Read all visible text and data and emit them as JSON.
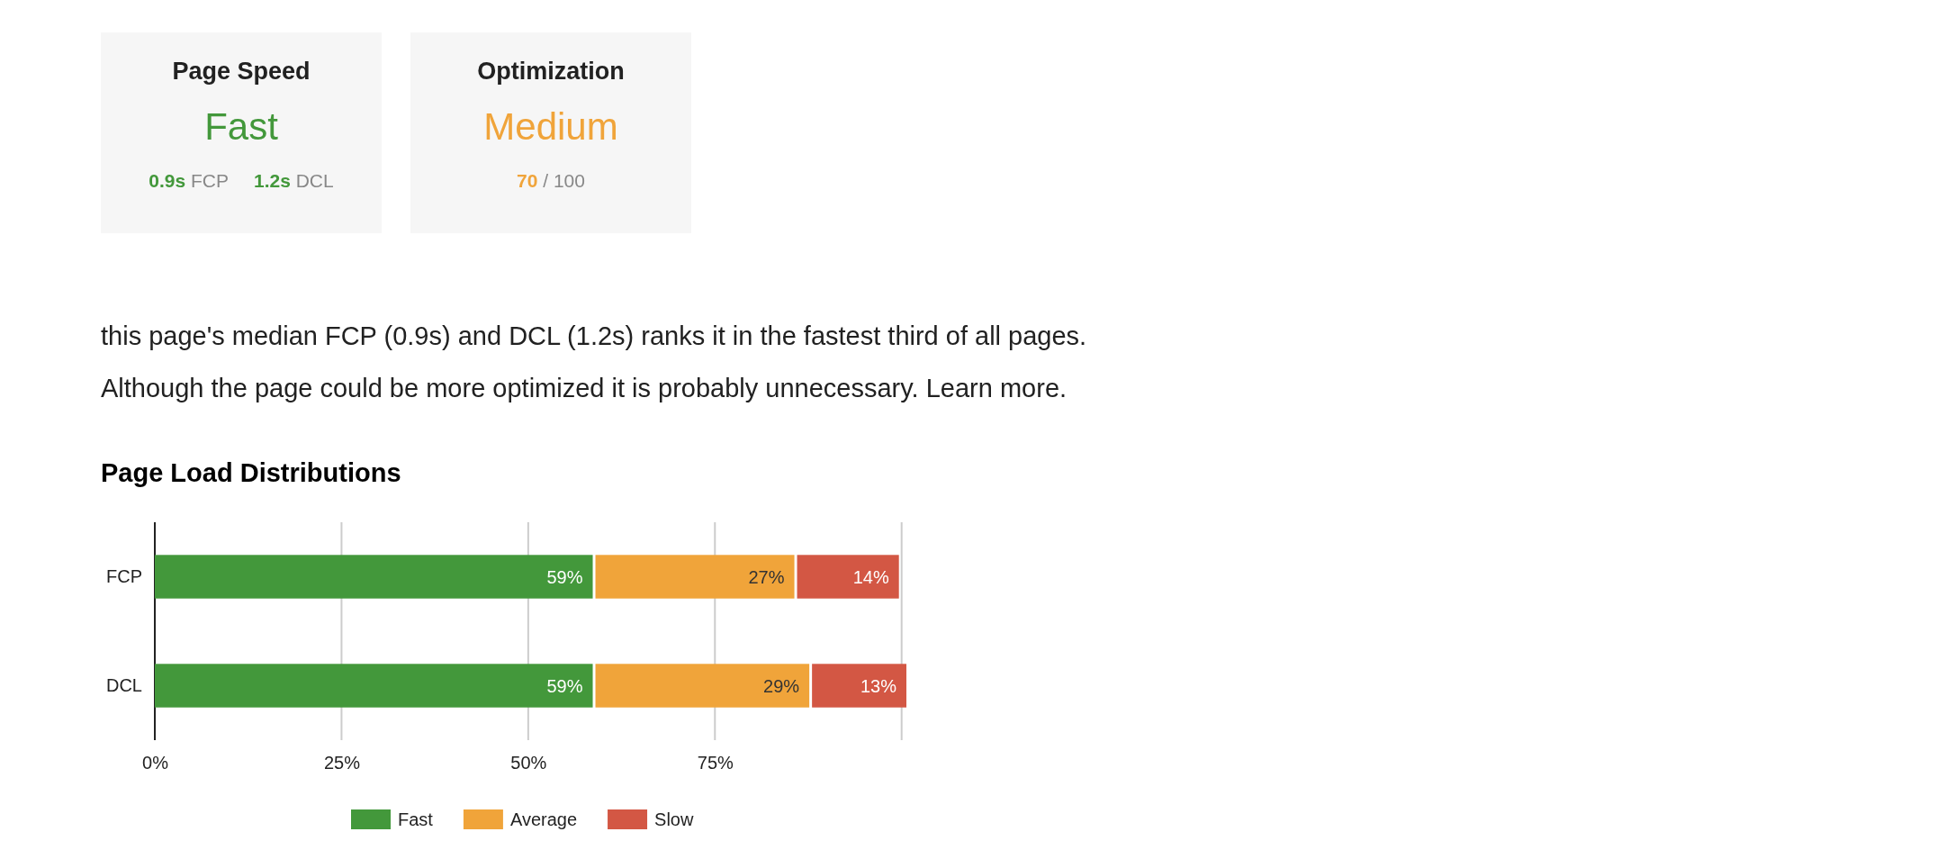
{
  "chart_data": [
    {
      "type": "other",
      "title": "Page Speed",
      "subtitle": "Fast",
      "color": "#43983b",
      "annotations": [
        "0.9s FCP",
        "1.2s DCL"
      ]
    },
    {
      "type": "other",
      "title": "Optimization",
      "subtitle": "Medium",
      "color": "#f0a43a",
      "annotations": [
        "70 / 100"
      ]
    },
    {
      "type": "bar",
      "orientation": "horizontal",
      "stacked": true,
      "title": "Page Load Distributions",
      "annotations": [
        "this page's median FCP (0.9s) and DCL (1.2s) ranks it in the fastest third of all pages.",
        "Although the page could be more optimized it is probably unnecessary. Learn more."
      ],
      "categories": [
        "FCP",
        "DCL"
      ],
      "series": [
        {
          "name": "Fast",
          "color": "#43983b",
          "values": [
            59,
            59
          ],
          "value_labels": [
            "59%",
            "59%"
          ]
        },
        {
          "name": "Average",
          "color": "#f0a43a",
          "values": [
            27,
            29
          ],
          "value_labels": [
            "27%",
            "29%"
          ]
        },
        {
          "name": "Slow",
          "color": "#d35744",
          "values": [
            14,
            13
          ],
          "value_labels": [
            "14%",
            "13%"
          ]
        }
      ],
      "xlim": [
        0,
        101
      ],
      "xticks": [
        {
          "value": 0,
          "label": "0%"
        },
        {
          "value": 25,
          "label": "25%"
        },
        {
          "value": 50,
          "label": "50%"
        },
        {
          "value": 75,
          "label": "75%"
        },
        {
          "value": 100,
          "label": null
        }
      ],
      "grid": "x",
      "legend": "bottom"
    }
  ]
}
